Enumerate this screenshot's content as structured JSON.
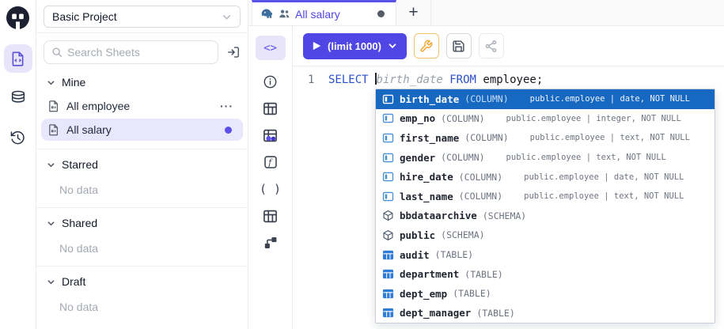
{
  "colors": {
    "accent": "#4f46e5",
    "accent2": "#5b51e8",
    "accent_bg": "#e8e5fb",
    "autocomplete_highlight": "#1668c0",
    "keyword_blue": "#2b50c8",
    "wrench_orange": "#f0a32b",
    "table_icon_blue": "#2e7cd6"
  },
  "left_rail": {
    "icons": [
      "logo",
      "sheets",
      "database",
      "history"
    ],
    "active_icon": "sheets"
  },
  "project_selector": {
    "value": "Basic Project"
  },
  "search": {
    "placeholder": "Search Sheets"
  },
  "sidebar": {
    "sections": [
      {
        "label": "Mine",
        "items": [
          {
            "label": "All employee",
            "selected": false,
            "menu": "···"
          },
          {
            "label": "All salary",
            "selected": true,
            "dot": true
          }
        ]
      },
      {
        "label": "Starred",
        "empty": "No data"
      },
      {
        "label": "Shared",
        "empty": "No data"
      },
      {
        "label": "Draft",
        "empty": "No data"
      }
    ]
  },
  "tabs": {
    "active": {
      "label": "All salary",
      "icons": [
        "postgres-icon",
        "shared-users-icon"
      ],
      "unsaved_dot": true
    },
    "new_tab_label": "+"
  },
  "toolbar": {
    "code_toggle_label": "<>",
    "run_label": "(limit 1000)",
    "icons": [
      "wrench",
      "save",
      "share"
    ]
  },
  "editor_rail": {
    "icons": [
      "info",
      "table",
      "results",
      "function",
      "parentheses",
      "table",
      "schema"
    ],
    "parentheses_glyph": "( )"
  },
  "editor": {
    "line_number": "1",
    "code": {
      "kw1": "SELECT ",
      "ghost": "birth_date",
      "kw2": " FROM ",
      "tail": "employee;"
    }
  },
  "autocomplete": {
    "items": [
      {
        "name": "birth_date",
        "kind_label": "(COLUMN)",
        "detail": "public.employee | date, NOT NULL",
        "icon": "column",
        "selected": true
      },
      {
        "name": "emp_no",
        "kind_label": "(COLUMN)",
        "detail": "public.employee | integer, NOT NULL",
        "icon": "column"
      },
      {
        "name": "first_name",
        "kind_label": "(COLUMN)",
        "detail": "public.employee | text, NOT NULL",
        "icon": "column"
      },
      {
        "name": "gender",
        "kind_label": "(COLUMN)",
        "detail": "public.employee | text, NOT NULL",
        "icon": "column"
      },
      {
        "name": "hire_date",
        "kind_label": "(COLUMN)",
        "detail": "public.employee | date, NOT NULL",
        "icon": "column"
      },
      {
        "name": "last_name",
        "kind_label": "(COLUMN)",
        "detail": "public.employee | text, NOT NULL",
        "icon": "column"
      },
      {
        "name": "bbdataarchive",
        "kind_label": "(SCHEMA)",
        "detail": "",
        "icon": "schema"
      },
      {
        "name": "public",
        "kind_label": "(SCHEMA)",
        "detail": "",
        "icon": "schema"
      },
      {
        "name": "audit",
        "kind_label": "(TABLE)",
        "detail": "",
        "icon": "table"
      },
      {
        "name": "department",
        "kind_label": "(TABLE)",
        "detail": "",
        "icon": "table"
      },
      {
        "name": "dept_emp",
        "kind_label": "(TABLE)",
        "detail": "",
        "icon": "table"
      },
      {
        "name": "dept_manager",
        "kind_label": "(TABLE)",
        "detail": "",
        "icon": "table"
      }
    ]
  }
}
